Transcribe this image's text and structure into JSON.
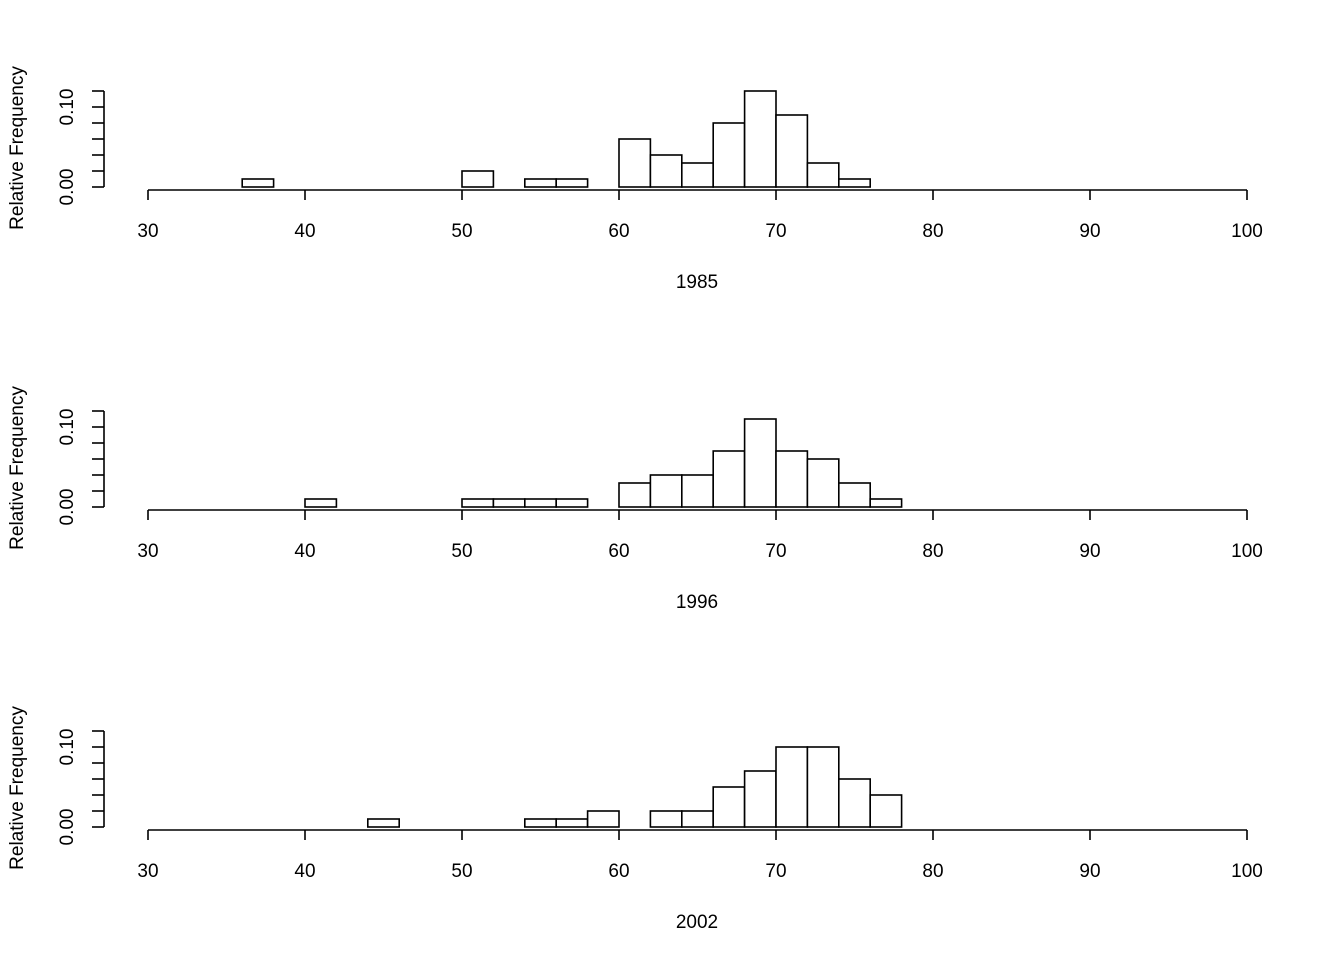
{
  "chart_data": [
    {
      "type": "bar",
      "xlabel": "1985",
      "ylabel": "Relative Frequency",
      "xlim": [
        30,
        100
      ],
      "xticks": [
        30,
        40,
        50,
        60,
        70,
        80,
        90,
        100
      ],
      "ylim": [
        0,
        0.12
      ],
      "yticks": [
        0,
        0.02,
        0.04,
        0.06,
        0.08,
        0.1,
        0.12
      ],
      "ytick_labels": [
        "0.00",
        "0.10"
      ],
      "bin_width": 2,
      "bins": [
        {
          "x": 36,
          "value": 0.01
        },
        {
          "x": 38,
          "value": 0.0
        },
        {
          "x": 40,
          "value": 0.0
        },
        {
          "x": 42,
          "value": 0.0
        },
        {
          "x": 44,
          "value": 0.0
        },
        {
          "x": 46,
          "value": 0.0
        },
        {
          "x": 48,
          "value": 0.0
        },
        {
          "x": 50,
          "value": 0.02
        },
        {
          "x": 52,
          "value": 0.0
        },
        {
          "x": 54,
          "value": 0.01
        },
        {
          "x": 56,
          "value": 0.01
        },
        {
          "x": 58,
          "value": 0.0
        },
        {
          "x": 60,
          "value": 0.06
        },
        {
          "x": 62,
          "value": 0.04
        },
        {
          "x": 64,
          "value": 0.03
        },
        {
          "x": 66,
          "value": 0.08
        },
        {
          "x": 68,
          "value": 0.12
        },
        {
          "x": 70,
          "value": 0.09
        },
        {
          "x": 72,
          "value": 0.03
        },
        {
          "x": 74,
          "value": 0.01
        }
      ]
    },
    {
      "type": "bar",
      "xlabel": "1996",
      "ylabel": "Relative Frequency",
      "xlim": [
        30,
        100
      ],
      "xticks": [
        30,
        40,
        50,
        60,
        70,
        80,
        90,
        100
      ],
      "ylim": [
        0,
        0.12
      ],
      "yticks": [
        0,
        0.02,
        0.04,
        0.06,
        0.08,
        0.1,
        0.12
      ],
      "ytick_labels": [
        "0.00",
        "0.10"
      ],
      "bin_width": 2,
      "bins": [
        {
          "x": 40,
          "value": 0.01
        },
        {
          "x": 42,
          "value": 0.0
        },
        {
          "x": 44,
          "value": 0.0
        },
        {
          "x": 46,
          "value": 0.0
        },
        {
          "x": 48,
          "value": 0.0
        },
        {
          "x": 50,
          "value": 0.01
        },
        {
          "x": 52,
          "value": 0.01
        },
        {
          "x": 54,
          "value": 0.01
        },
        {
          "x": 56,
          "value": 0.01
        },
        {
          "x": 58,
          "value": 0.0
        },
        {
          "x": 60,
          "value": 0.03
        },
        {
          "x": 62,
          "value": 0.04
        },
        {
          "x": 64,
          "value": 0.04
        },
        {
          "x": 66,
          "value": 0.07
        },
        {
          "x": 68,
          "value": 0.11
        },
        {
          "x": 70,
          "value": 0.07
        },
        {
          "x": 72,
          "value": 0.06
        },
        {
          "x": 74,
          "value": 0.03
        },
        {
          "x": 76,
          "value": 0.01
        }
      ]
    },
    {
      "type": "bar",
      "xlabel": "2002",
      "ylabel": "Relative Frequency",
      "xlim": [
        30,
        100
      ],
      "xticks": [
        30,
        40,
        50,
        60,
        70,
        80,
        90,
        100
      ],
      "ylim": [
        0,
        0.12
      ],
      "yticks": [
        0,
        0.02,
        0.04,
        0.06,
        0.08,
        0.1,
        0.12
      ],
      "ytick_labels": [
        "0.00",
        "0.10"
      ],
      "bin_width": 2,
      "bins": [
        {
          "x": 44,
          "value": 0.01
        },
        {
          "x": 46,
          "value": 0.0
        },
        {
          "x": 48,
          "value": 0.0
        },
        {
          "x": 50,
          "value": 0.0
        },
        {
          "x": 52,
          "value": 0.0
        },
        {
          "x": 54,
          "value": 0.01
        },
        {
          "x": 56,
          "value": 0.01
        },
        {
          "x": 58,
          "value": 0.02
        },
        {
          "x": 60,
          "value": 0.0
        },
        {
          "x": 62,
          "value": 0.02
        },
        {
          "x": 64,
          "value": 0.02
        },
        {
          "x": 66,
          "value": 0.05
        },
        {
          "x": 68,
          "value": 0.07
        },
        {
          "x": 70,
          "value": 0.1
        },
        {
          "x": 72,
          "value": 0.1
        },
        {
          "x": 74,
          "value": 0.06
        },
        {
          "x": 76,
          "value": 0.04
        }
      ]
    }
  ]
}
